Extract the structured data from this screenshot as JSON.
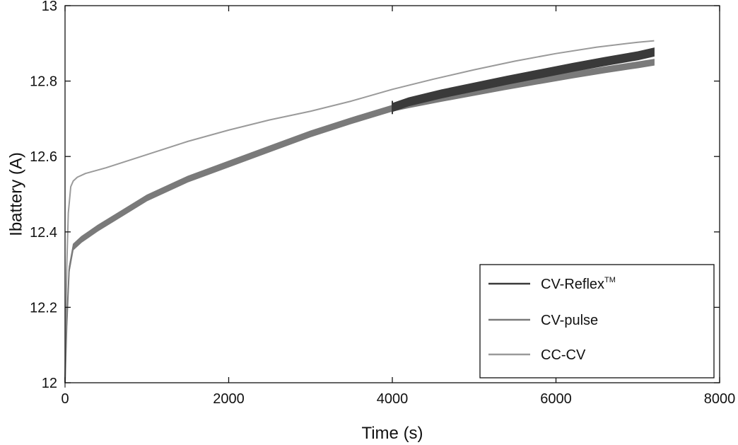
{
  "chart_data": {
    "type": "line",
    "xlabel": "Time (s)",
    "ylabel": "Ibattery (A)",
    "xlim": [
      0,
      8000
    ],
    "ylim": [
      12,
      13
    ],
    "x_ticks": [
      "0",
      "2000",
      "4000",
      "6000",
      "8000"
    ],
    "y_ticks": [
      "12",
      "12.2",
      "12.4",
      "12.6",
      "12.8",
      "13"
    ],
    "grid": false,
    "legend_position": "bottom-right",
    "series": [
      {
        "name": "CV-Reflex",
        "name_superscript": "TM",
        "color": "#3a3a3a",
        "band_width": 0.022,
        "x": [
          4000,
          4200,
          4600,
          5000,
          5400,
          5800,
          6200,
          6600,
          7000,
          7200
        ],
        "y": [
          12.73,
          12.745,
          12.766,
          12.784,
          12.802,
          12.819,
          12.836,
          12.852,
          12.867,
          12.877
        ]
      },
      {
        "name": "CV-pulse",
        "color": "#7a7a7a",
        "band_width": 0.016,
        "x": [
          0,
          20,
          50,
          100,
          200,
          400,
          700,
          1000,
          1500,
          2000,
          2500,
          3000,
          3500,
          4000,
          4200,
          4600,
          5000,
          5400,
          5800,
          6200,
          6600,
          7000,
          7200
        ],
        "y": [
          12.0,
          12.15,
          12.3,
          12.36,
          12.38,
          12.41,
          12.45,
          12.49,
          12.54,
          12.58,
          12.62,
          12.66,
          12.695,
          12.728,
          12.737,
          12.754,
          12.77,
          12.786,
          12.801,
          12.816,
          12.83,
          12.843,
          12.85
        ]
      },
      {
        "name": "CC-CV",
        "color": "#9a9a9a",
        "x": [
          0,
          20,
          40,
          70,
          100,
          150,
          250,
          500,
          1000,
          1500,
          2000,
          2500,
          3000,
          3500,
          4000,
          4500,
          5000,
          5500,
          6000,
          6500,
          7000,
          7200
        ],
        "y": [
          12.0,
          12.3,
          12.45,
          12.52,
          12.535,
          12.545,
          12.555,
          12.57,
          12.605,
          12.64,
          12.67,
          12.697,
          12.72,
          12.747,
          12.778,
          12.805,
          12.83,
          12.853,
          12.873,
          12.89,
          12.903,
          12.907
        ]
      }
    ]
  }
}
